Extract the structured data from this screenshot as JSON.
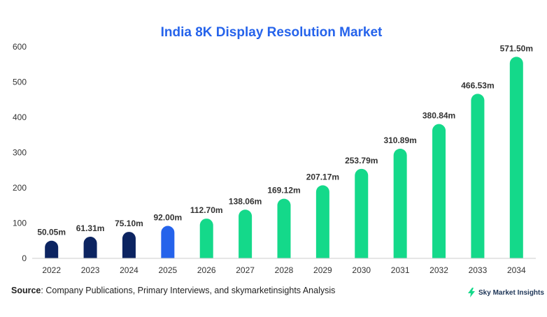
{
  "colors": {
    "title": "#2563eb",
    "historical": "#0c2461",
    "current": "#2563eb",
    "forecast": "#14d98a",
    "axis": "#cccccc"
  },
  "chart_data": {
    "type": "bar",
    "title": "India 8K Display Resolution Market",
    "xlabel": "",
    "ylabel": "",
    "ylim": [
      0,
      600
    ],
    "yticks": [
      0,
      100,
      200,
      300,
      400,
      500,
      600
    ],
    "categories": [
      "2022",
      "2023",
      "2024",
      "2025",
      "2026",
      "2027",
      "2028",
      "2029",
      "2030",
      "2031",
      "2032",
      "2033",
      "2034"
    ],
    "values": [
      50.05,
      61.31,
      75.1,
      92.0,
      112.7,
      138.06,
      169.12,
      207.17,
      253.79,
      310.89,
      380.84,
      466.53,
      571.5
    ],
    "data_labels": [
      "50.05m",
      "61.31m",
      "75.10m",
      "92.00m",
      "112.70m",
      "138.06m",
      "169.12m",
      "207.17m",
      "253.79m",
      "310.89m",
      "380.84m",
      "466.53m",
      "571.50m"
    ],
    "bar_color_groups": [
      "historical",
      "historical",
      "historical",
      "current",
      "forecast",
      "forecast",
      "forecast",
      "forecast",
      "forecast",
      "forecast",
      "forecast",
      "forecast",
      "forecast"
    ],
    "grid": false,
    "legend": "none"
  },
  "footer": {
    "source_label": "Source",
    "source_text": ": Company Publications, Primary Interviews, and skymarketinsights Analysis"
  },
  "brand": {
    "name": "Sky Market Insights",
    "icon": "lightning-bolt-icon"
  }
}
